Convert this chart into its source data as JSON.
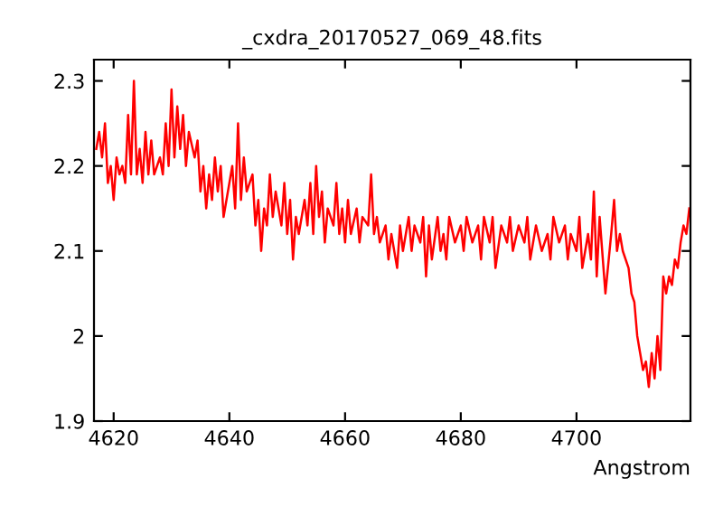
{
  "chart_data": {
    "type": "line",
    "title": "_cxdra_20170527_069_48.fits",
    "xlabel": "Angstrom",
    "xlim": [
      4616.6,
      4719.7
    ],
    "ylim": [
      1.9,
      2.325
    ],
    "xticks": [
      4620,
      4640,
      4660,
      4680,
      4700
    ],
    "yticks": [
      1.9,
      2,
      2.1,
      2.2,
      2.3
    ],
    "grid": false,
    "legend": false,
    "marker": "none",
    "line_style": "solid",
    "series": [
      {
        "color": "#ff0000",
        "x": [
          4617,
          4617.5,
          4618,
          4618.5,
          4619,
          4619.5,
          4620,
          4620.5,
          4621,
          4621.5,
          4622,
          4622.5,
          4623,
          4623.5,
          4624,
          4624.5,
          4625,
          4625.5,
          4626,
          4626.5,
          4627,
          4628,
          4628.5,
          4629,
          4629.5,
          4630,
          4630.5,
          4631,
          4631.5,
          4632,
          4632.5,
          4633,
          4634,
          4634.5,
          4635,
          4635.5,
          4636,
          4636.5,
          4637,
          4637.5,
          4638,
          4638.5,
          4639,
          4640,
          4640.5,
          4641,
          4641.5,
          4642,
          4642.5,
          4643,
          4644,
          4644.5,
          4645,
          4645.5,
          4646,
          4646.5,
          4647,
          4647.5,
          4648,
          4649,
          4649.5,
          4650,
          4650.5,
          4651,
          4651.5,
          4652,
          4653,
          4653.5,
          4654,
          4654.5,
          4655,
          4655.5,
          4656,
          4656.5,
          4657,
          4658,
          4658.5,
          4659,
          4659.5,
          4660,
          4660.5,
          4661,
          4662,
          4662.5,
          4663,
          4664,
          4664.5,
          4665,
          4665.5,
          4666,
          4667,
          4667.5,
          4668,
          4669,
          4669.5,
          4670,
          4671,
          4671.5,
          4672,
          4673,
          4673.5,
          4674,
          4674.5,
          4675,
          4676,
          4676.5,
          4677,
          4677.5,
          4678,
          4679,
          4680,
          4680.5,
          4681,
          4682,
          4683,
          4683.5,
          4684,
          4685,
          4685.5,
          4686,
          4687,
          4688,
          4688.5,
          4689,
          4690,
          4691,
          4691.5,
          4692,
          4693,
          4694,
          4695,
          4695.5,
          4696,
          4697,
          4698,
          4698.5,
          4699,
          4700,
          4700.5,
          4701,
          4702,
          4702.5,
          4703,
          4703.5,
          4704,
          4705,
          4706,
          4706.5,
          4707,
          4707.5,
          4708,
          4709,
          4709.5,
          4710,
          4710.5,
          4711,
          4711.5,
          4712,
          4712.5,
          4713,
          4713.5,
          4714,
          4714.5,
          4715,
          4715.5,
          4716,
          4716.5,
          4717,
          4717.5,
          4718,
          4718.5,
          4719,
          4719.5
        ],
        "values": [
          2.22,
          2.24,
          2.21,
          2.25,
          2.18,
          2.2,
          2.16,
          2.21,
          2.19,
          2.2,
          2.18,
          2.26,
          2.19,
          2.3,
          2.19,
          2.22,
          2.18,
          2.24,
          2.19,
          2.23,
          2.19,
          2.21,
          2.19,
          2.25,
          2.2,
          2.29,
          2.21,
          2.27,
          2.22,
          2.26,
          2.2,
          2.24,
          2.21,
          2.23,
          2.17,
          2.2,
          2.15,
          2.19,
          2.16,
          2.21,
          2.17,
          2.2,
          2.14,
          2.18,
          2.2,
          2.15,
          2.25,
          2.16,
          2.21,
          2.17,
          2.19,
          2.13,
          2.16,
          2.1,
          2.15,
          2.13,
          2.19,
          2.14,
          2.17,
          2.13,
          2.18,
          2.12,
          2.16,
          2.09,
          2.14,
          2.12,
          2.16,
          2.13,
          2.18,
          2.12,
          2.2,
          2.14,
          2.17,
          2.11,
          2.15,
          2.13,
          2.18,
          2.12,
          2.15,
          2.11,
          2.16,
          2.12,
          2.15,
          2.11,
          2.14,
          2.13,
          2.19,
          2.12,
          2.14,
          2.11,
          2.13,
          2.09,
          2.12,
          2.08,
          2.13,
          2.1,
          2.14,
          2.1,
          2.13,
          2.11,
          2.14,
          2.07,
          2.13,
          2.09,
          2.14,
          2.1,
          2.12,
          2.09,
          2.14,
          2.11,
          2.13,
          2.1,
          2.14,
          2.11,
          2.13,
          2.09,
          2.14,
          2.11,
          2.14,
          2.08,
          2.13,
          2.11,
          2.14,
          2.1,
          2.13,
          2.11,
          2.14,
          2.09,
          2.13,
          2.1,
          2.12,
          2.09,
          2.14,
          2.11,
          2.13,
          2.09,
          2.12,
          2.1,
          2.14,
          2.08,
          2.12,
          2.09,
          2.17,
          2.07,
          2.14,
          2.05,
          2.12,
          2.16,
          2.1,
          2.12,
          2.1,
          2.08,
          2.05,
          2.04,
          2.0,
          1.98,
          1.96,
          1.97,
          1.94,
          1.98,
          1.95,
          2.0,
          1.96,
          2.07,
          2.05,
          2.07,
          2.06,
          2.09,
          2.08,
          2.11,
          2.13,
          2.12,
          2.15
        ]
      }
    ]
  }
}
